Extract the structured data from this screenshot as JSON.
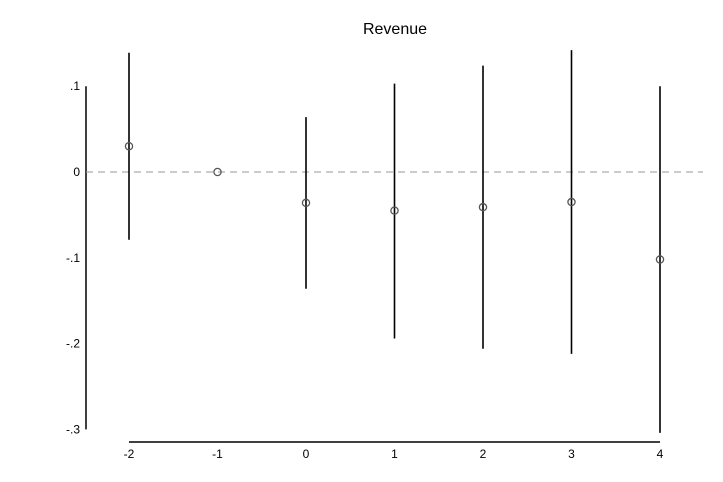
{
  "chart_data": {
    "type": "scatter",
    "title": "Revenue",
    "xlabel": "",
    "ylabel": "",
    "x_ticks": [
      -2,
      -1,
      0,
      1,
      2,
      3,
      4
    ],
    "x_tick_labels": [
      "-2",
      "-1",
      "0",
      "1",
      "2",
      "3",
      "4"
    ],
    "y_ticks": [
      0.1,
      0,
      -0.1,
      -0.2,
      -0.3
    ],
    "y_tick_labels": [
      ".1",
      "0",
      "-.1",
      "-.2",
      "-.3"
    ],
    "ylim": [
      -0.3,
      0.1
    ],
    "reference_line_y": 0,
    "grid": false,
    "points": [
      {
        "x": -2,
        "y": 0.03,
        "ci_low": -0.079,
        "ci_high": 0.139
      },
      {
        "x": -1,
        "y": 0.0,
        "ci_low": null,
        "ci_high": null
      },
      {
        "x": 0,
        "y": -0.036,
        "ci_low": -0.136,
        "ci_high": 0.064
      },
      {
        "x": 1,
        "y": -0.045,
        "ci_low": -0.194,
        "ci_high": 0.103
      },
      {
        "x": 2,
        "y": -0.041,
        "ci_low": -0.206,
        "ci_high": 0.124
      },
      {
        "x": 3,
        "y": -0.035,
        "ci_low": -0.212,
        "ci_high": 0.142
      },
      {
        "x": 4,
        "y": -0.102,
        "ci_low": -0.304,
        "ci_high": 0.1
      }
    ],
    "colors": {
      "marker": "#555555",
      "ci_line": "#000000",
      "reference_line": "#999999",
      "axis": "#000000"
    }
  }
}
